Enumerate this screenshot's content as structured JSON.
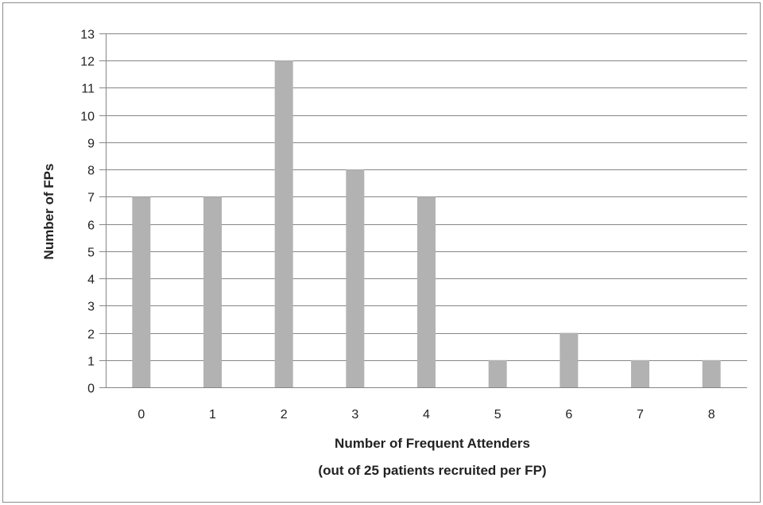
{
  "chart_data": {
    "type": "bar",
    "categories": [
      "0",
      "1",
      "2",
      "3",
      "4",
      "5",
      "6",
      "7",
      "8"
    ],
    "values": [
      7,
      7,
      12,
      8,
      7,
      1,
      2,
      1,
      1
    ],
    "title": "",
    "xlabel": [
      "Number of Frequent Attenders",
      "(out of 25 patients recruited per FP)"
    ],
    "ylabel": "Number of FPs",
    "ylim": [
      0,
      13
    ],
    "yticks": [
      "0",
      "1",
      "2",
      "3",
      "4",
      "5",
      "6",
      "7",
      "8",
      "9",
      "10",
      "11",
      "12",
      "13"
    ],
    "grid": true,
    "legend": "none",
    "colors": {
      "bar": "#b2b2b2",
      "grid": "#868686",
      "text": "#222222"
    }
  }
}
